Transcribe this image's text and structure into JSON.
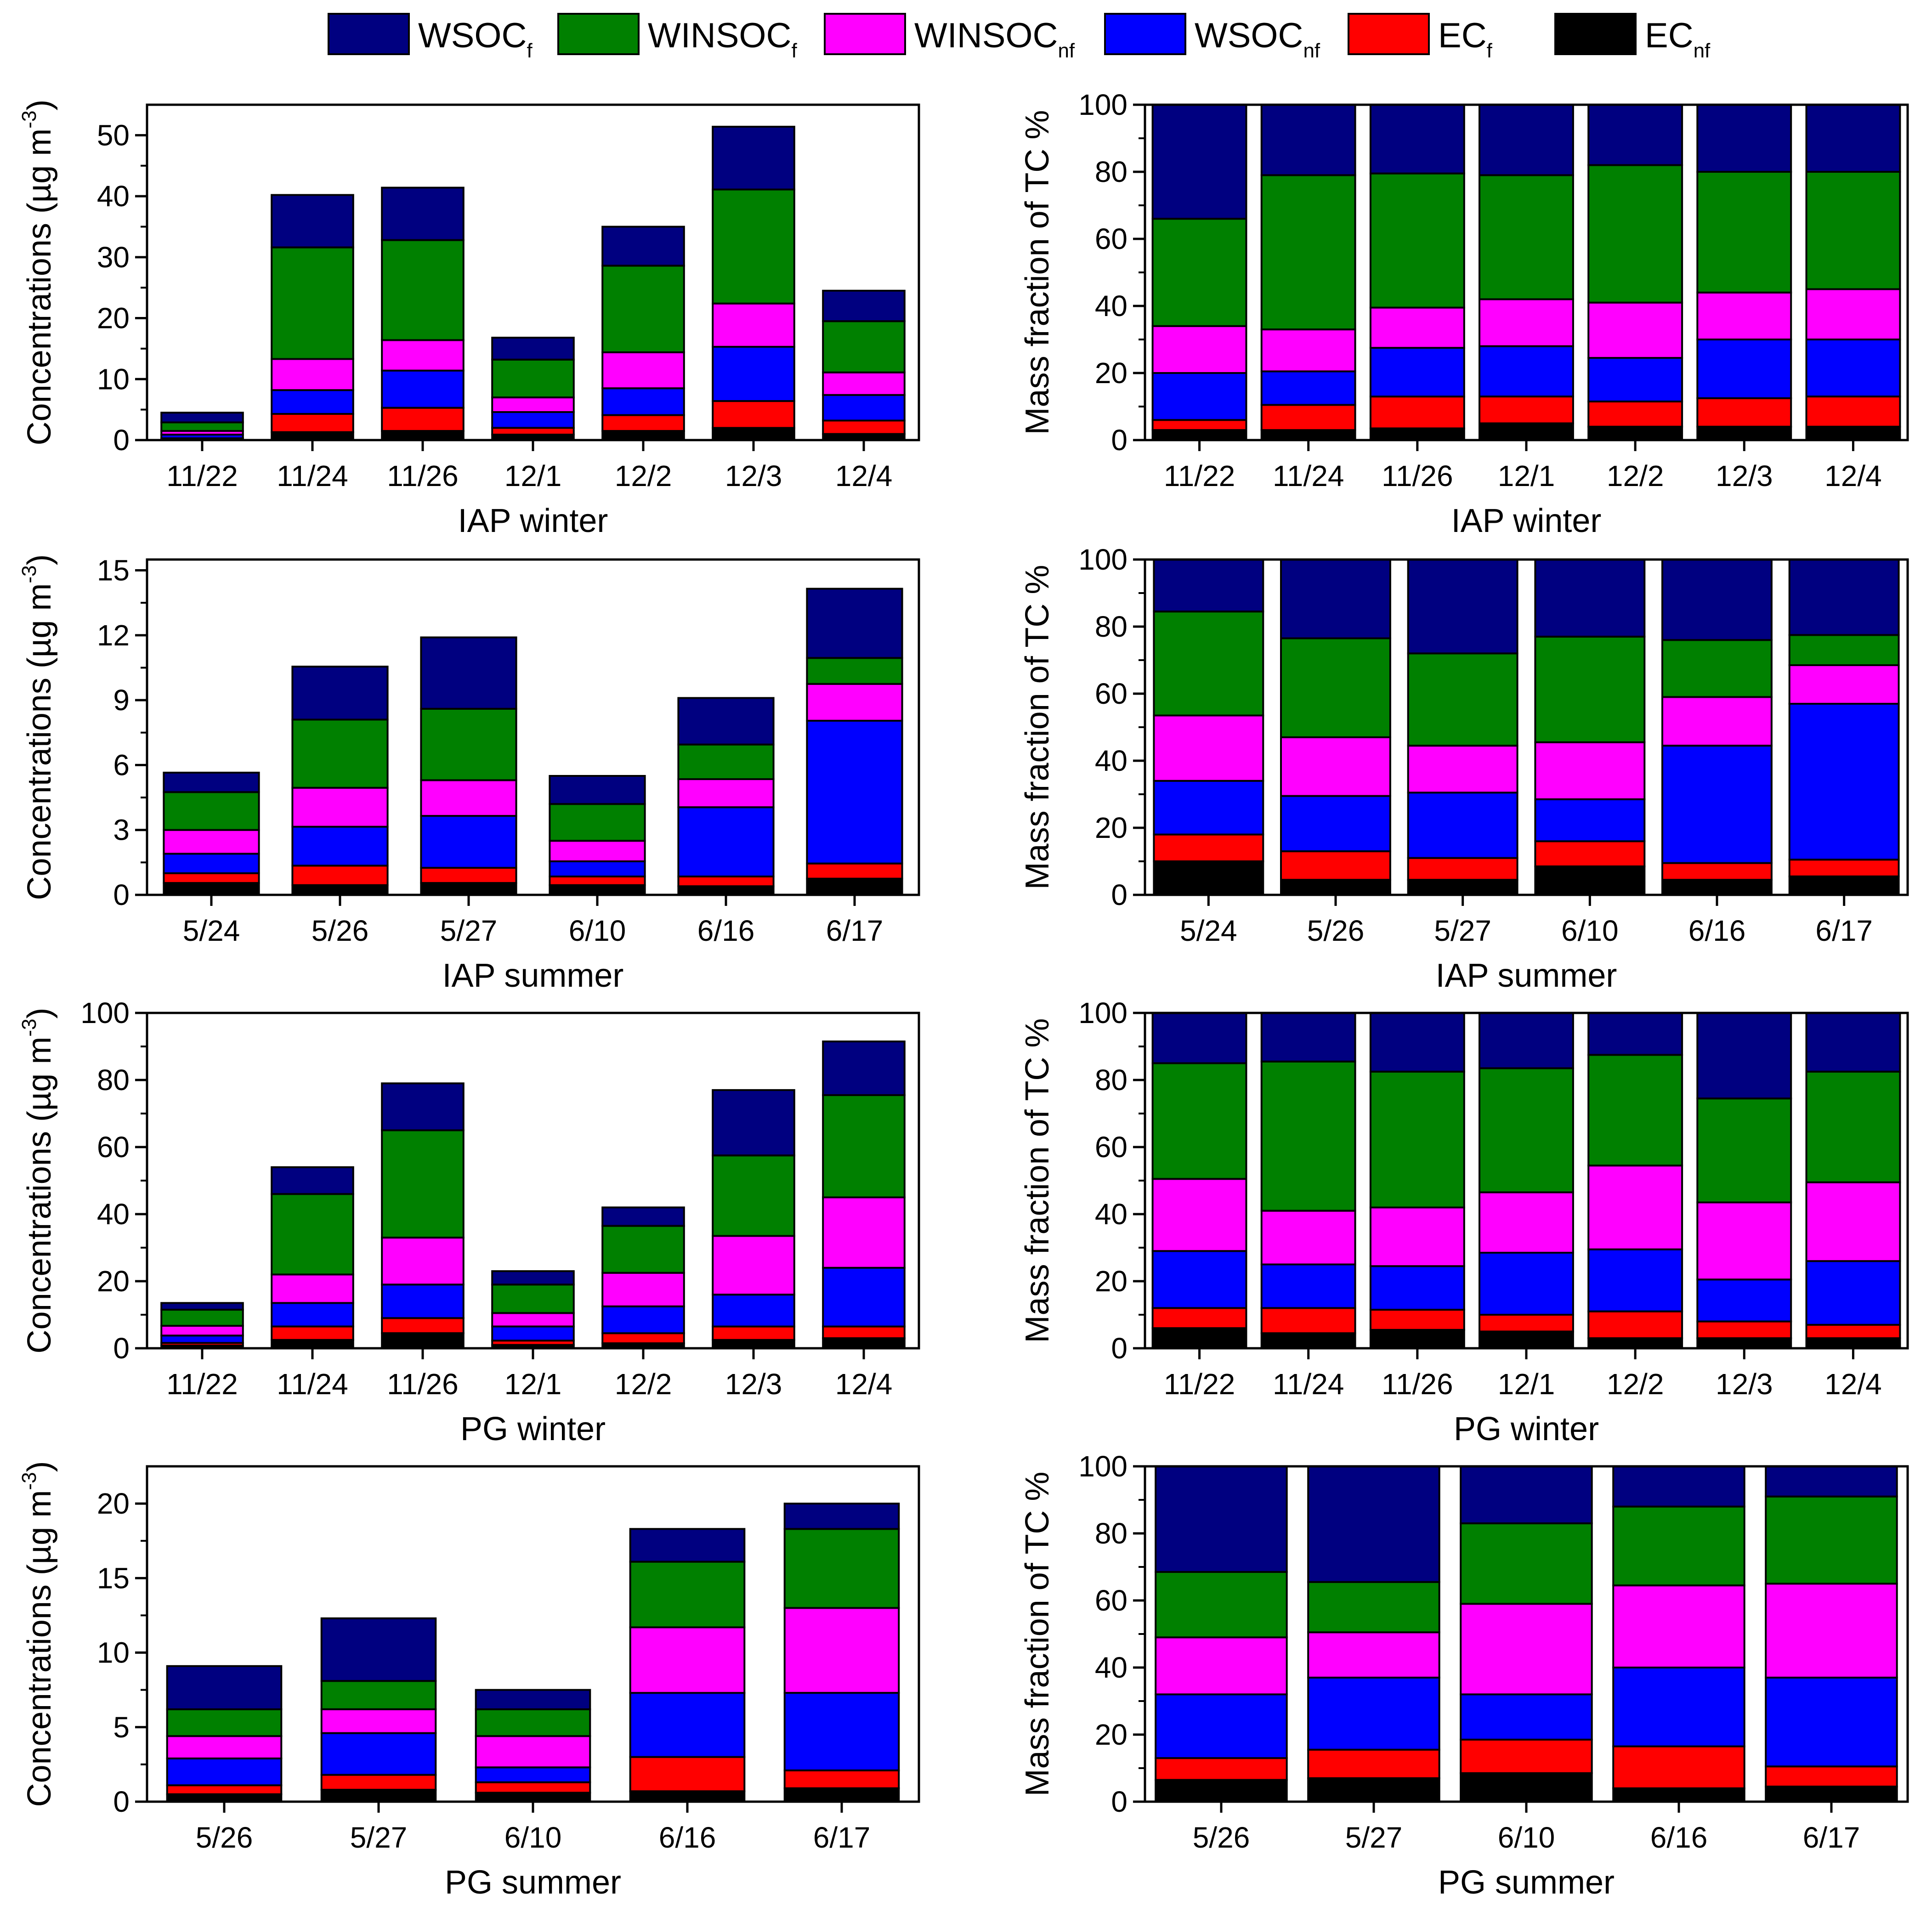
{
  "legend": [
    {
      "base": "WSOC",
      "sub": "f",
      "color": "#000080"
    },
    {
      "base": "WINSOC",
      "sub": "f",
      "color": "#008000"
    },
    {
      "base": "WINSOC",
      "sub": "nf",
      "color": "#FF00FF"
    },
    {
      "base": "WSOC",
      "sub": "nf",
      "color": "#0000FF"
    },
    {
      "base": "EC",
      "sub": "f",
      "color": "#FF0000"
    },
    {
      "base": "EC",
      "sub": "nf",
      "color": "#000000"
    }
  ],
  "chart_data": [
    {
      "type": "bar",
      "stacked": true,
      "xlabel": "IAP winter",
      "ylabel": "Concentrations (µg m^-3)",
      "ylim": [
        0,
        55
      ],
      "yticks": [
        0,
        10,
        20,
        30,
        40,
        50
      ],
      "categories": [
        "11/22",
        "11/24",
        "11/26",
        "12/1",
        "12/2",
        "12/3",
        "12/4"
      ],
      "series": [
        {
          "name": "ECnf",
          "values": [
            0.2,
            1.3,
            1.5,
            0.9,
            1.5,
            2.0,
            1.0
          ]
        },
        {
          "name": "ECf",
          "values": [
            0.1,
            3.0,
            3.8,
            1.1,
            2.6,
            4.4,
            2.2
          ]
        },
        {
          "name": "WSOCnf",
          "values": [
            0.6,
            3.9,
            6.1,
            2.6,
            4.4,
            8.9,
            4.2
          ]
        },
        {
          "name": "WINSOCnf",
          "values": [
            0.6,
            5.1,
            5.0,
            2.4,
            5.9,
            7.1,
            3.7
          ]
        },
        {
          "name": "WINSOCf",
          "values": [
            1.4,
            18.3,
            16.4,
            6.2,
            14.2,
            18.7,
            8.4
          ]
        },
        {
          "name": "WSOCf",
          "values": [
            1.6,
            8.6,
            8.6,
            3.6,
            6.4,
            10.3,
            5.0
          ]
        }
      ]
    },
    {
      "type": "bar",
      "stacked": true,
      "xlabel": "IAP winter",
      "ylabel": "Mass fraction of TC %",
      "ylim": [
        0,
        100
      ],
      "yticks": [
        0,
        20,
        40,
        60,
        80,
        100
      ],
      "categories": [
        "11/22",
        "11/24",
        "11/26",
        "12/1",
        "12/2",
        "12/3",
        "12/4"
      ],
      "series": [
        {
          "name": "ECnf",
          "values": [
            3,
            3,
            3.5,
            5,
            4,
            4,
            4
          ]
        },
        {
          "name": "ECf",
          "values": [
            3,
            7.5,
            9.5,
            8,
            7.5,
            8.5,
            9
          ]
        },
        {
          "name": "WSOCnf",
          "values": [
            14,
            10,
            14.5,
            15,
            13,
            17.5,
            17
          ]
        },
        {
          "name": "WINSOCnf",
          "values": [
            14,
            12.5,
            12,
            14,
            16.5,
            14,
            15
          ]
        },
        {
          "name": "WINSOCf",
          "values": [
            32,
            46,
            40,
            37,
            41,
            36,
            35
          ]
        },
        {
          "name": "WSOCf",
          "values": [
            34,
            21,
            20.5,
            21,
            18,
            20,
            20
          ]
        }
      ]
    },
    {
      "type": "bar",
      "stacked": true,
      "xlabel": "IAP summer",
      "ylabel": "Concentrations (µg m^-3)",
      "ylim": [
        0,
        15.5
      ],
      "yticks": [
        0,
        3,
        6,
        9,
        12,
        15
      ],
      "categories": [
        "5/24",
        "5/26",
        "5/27",
        "6/10",
        "6/16",
        "6/17"
      ],
      "series": [
        {
          "name": "ECnf",
          "values": [
            0.55,
            0.45,
            0.55,
            0.45,
            0.4,
            0.75
          ]
        },
        {
          "name": "ECf",
          "values": [
            0.45,
            0.9,
            0.7,
            0.4,
            0.45,
            0.7
          ]
        },
        {
          "name": "WSOCnf",
          "values": [
            0.9,
            1.8,
            2.4,
            0.7,
            3.2,
            6.6
          ]
        },
        {
          "name": "WINSOCnf",
          "values": [
            1.1,
            1.8,
            1.65,
            0.95,
            1.3,
            1.7
          ]
        },
        {
          "name": "WINSOCf",
          "values": [
            1.75,
            3.15,
            3.3,
            1.7,
            1.6,
            1.2
          ]
        },
        {
          "name": "WSOCf",
          "values": [
            0.9,
            2.45,
            3.3,
            1.3,
            2.15,
            3.2
          ]
        }
      ]
    },
    {
      "type": "bar",
      "stacked": true,
      "xlabel": "IAP summer",
      "ylabel": "Mass fraction of TC %",
      "ylim": [
        0,
        100
      ],
      "yticks": [
        0,
        20,
        40,
        60,
        80,
        100
      ],
      "categories": [
        "5/24",
        "5/26",
        "5/27",
        "6/10",
        "6/16",
        "6/17"
      ],
      "series": [
        {
          "name": "ECnf",
          "values": [
            10,
            4.5,
            4.5,
            8.5,
            4.5,
            5.5
          ]
        },
        {
          "name": "ECf",
          "values": [
            8,
            8.5,
            6.5,
            7.5,
            5,
            5
          ]
        },
        {
          "name": "WSOCnf",
          "values": [
            16,
            16.5,
            19.5,
            12.5,
            35,
            46.5
          ]
        },
        {
          "name": "WINSOCnf",
          "values": [
            19.5,
            17.5,
            14,
            17,
            14.5,
            11.5
          ]
        },
        {
          "name": "WINSOCf",
          "values": [
            31,
            29.5,
            27.5,
            31.5,
            17,
            9
          ]
        },
        {
          "name": "WSOCf",
          "values": [
            15.5,
            23.5,
            28,
            23,
            24,
            22.5
          ]
        }
      ]
    },
    {
      "type": "bar",
      "stacked": true,
      "xlabel": "PG winter",
      "ylabel": "Concentrations (µg m^-3)",
      "ylim": [
        0,
        100
      ],
      "yticks": [
        0,
        20,
        40,
        60,
        80,
        100
      ],
      "categories": [
        "11/22",
        "11/24",
        "11/26",
        "12/1",
        "12/2",
        "12/3",
        "12/4"
      ],
      "series": [
        {
          "name": "ECnf",
          "values": [
            0.8,
            2.5,
            4.5,
            1.0,
            1.5,
            2.5,
            3.0
          ]
        },
        {
          "name": "ECf",
          "values": [
            0.8,
            4.0,
            4.5,
            1.3,
            3.0,
            4.0,
            3.5
          ]
        },
        {
          "name": "WSOCnf",
          "values": [
            2.2,
            7.0,
            10.0,
            4.2,
            8.0,
            9.5,
            17.5
          ]
        },
        {
          "name": "WINSOCnf",
          "values": [
            2.9,
            8.5,
            14.0,
            4.0,
            10.0,
            17.5,
            21.0
          ]
        },
        {
          "name": "WINSOCf",
          "values": [
            4.8,
            24.0,
            32.0,
            8.5,
            14.0,
            24.0,
            30.5
          ]
        },
        {
          "name": "WSOCf",
          "values": [
            2.0,
            8.0,
            14.0,
            4.0,
            5.5,
            19.5,
            16.0
          ]
        }
      ]
    },
    {
      "type": "bar",
      "stacked": true,
      "xlabel": "PG winter",
      "ylabel": "Mass fraction of TC %",
      "ylim": [
        0,
        100
      ],
      "yticks": [
        0,
        20,
        40,
        60,
        80,
        100
      ],
      "categories": [
        "11/22",
        "11/24",
        "11/26",
        "12/1",
        "12/2",
        "12/3",
        "12/4"
      ],
      "series": [
        {
          "name": "ECnf",
          "values": [
            6,
            4.5,
            5.5,
            5,
            3,
            3,
            3
          ]
        },
        {
          "name": "ECf",
          "values": [
            6,
            7.5,
            6,
            5,
            8,
            5,
            4
          ]
        },
        {
          "name": "WSOCnf",
          "values": [
            17,
            13,
            13,
            18.5,
            18.5,
            12.5,
            19
          ]
        },
        {
          "name": "WINSOCnf",
          "values": [
            21.5,
            16,
            17.5,
            18,
            25,
            23,
            23.5
          ]
        },
        {
          "name": "WINSOCf",
          "values": [
            34.5,
            44.5,
            40.5,
            37,
            33,
            31,
            33
          ]
        },
        {
          "name": "WSOCf",
          "values": [
            15,
            14.5,
            17.5,
            16.5,
            12.5,
            25.5,
            17.5
          ]
        }
      ]
    },
    {
      "type": "bar",
      "stacked": true,
      "xlabel": "PG summer",
      "ylabel": "Concentrations (µg m^-3)",
      "ylim": [
        0,
        22.5
      ],
      "yticks": [
        0,
        5,
        10,
        15,
        20
      ],
      "categories": [
        "5/26",
        "5/27",
        "6/10",
        "6/16",
        "6/17"
      ],
      "series": [
        {
          "name": "ECnf",
          "values": [
            0.5,
            0.8,
            0.6,
            0.7,
            0.9
          ]
        },
        {
          "name": "ECf",
          "values": [
            0.6,
            1.0,
            0.7,
            2.3,
            1.2
          ]
        },
        {
          "name": "WSOCnf",
          "values": [
            1.8,
            2.8,
            1.0,
            4.3,
            5.2
          ]
        },
        {
          "name": "WINSOCnf",
          "values": [
            1.5,
            1.6,
            2.1,
            4.4,
            5.7
          ]
        },
        {
          "name": "WINSOCf",
          "values": [
            1.8,
            1.9,
            1.8,
            4.4,
            5.3
          ]
        },
        {
          "name": "WSOCf",
          "values": [
            2.9,
            4.2,
            1.3,
            2.2,
            1.7
          ]
        }
      ]
    },
    {
      "type": "bar",
      "stacked": true,
      "xlabel": "PG summer",
      "ylabel": "Mass fraction of TC %",
      "ylim": [
        0,
        100
      ],
      "yticks": [
        0,
        20,
        40,
        60,
        80,
        100
      ],
      "categories": [
        "5/26",
        "5/27",
        "6/10",
        "6/16",
        "6/17"
      ],
      "series": [
        {
          "name": "ECnf",
          "values": [
            6.5,
            7,
            8.5,
            4,
            4.5
          ]
        },
        {
          "name": "ECf",
          "values": [
            6.5,
            8.5,
            10,
            12.5,
            6
          ]
        },
        {
          "name": "WSOCnf",
          "values": [
            19,
            21.5,
            13.5,
            23.5,
            26.5
          ]
        },
        {
          "name": "WINSOCnf",
          "values": [
            17,
            13.5,
            27,
            24.5,
            28
          ]
        },
        {
          "name": "WINSOCf",
          "values": [
            19.5,
            15,
            24,
            23.5,
            26
          ]
        },
        {
          "name": "WSOCf",
          "values": [
            31.5,
            34.5,
            17,
            12,
            9
          ]
        }
      ]
    }
  ]
}
